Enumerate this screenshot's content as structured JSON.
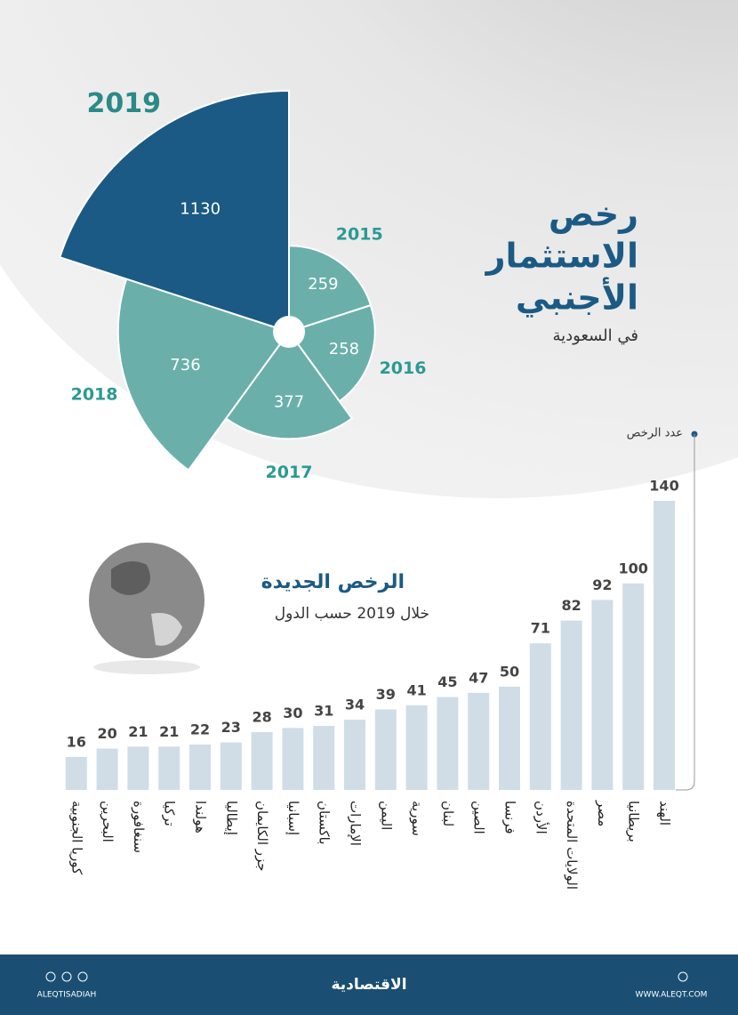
{
  "chart_data": [
    {
      "type": "polar",
      "title": [
        "رخص",
        "الاستثمار",
        "الأجنبي"
      ],
      "subtitle": "في السعودية",
      "categories": [
        "2015",
        "2016",
        "2017",
        "2018",
        "2019"
      ],
      "values": [
        259,
        258,
        377,
        736,
        1130
      ],
      "colors": [
        "#6aafaa",
        "#6aafaa",
        "#6aafaa",
        "#6aafaa",
        "#1b5a84"
      ]
    },
    {
      "type": "bar",
      "title": "الرخص الجديدة",
      "subtitle": "خلال 2019 حسب الدول",
      "y_label": "عدد الرخص",
      "categories": [
        "الهند",
        "بريطانيا",
        "مصر",
        "الولايات المتحدة",
        "الأردن",
        "فرنسا",
        "الصين",
        "لبنان",
        "سورية",
        "اليمن",
        "الإمارات",
        "باكستان",
        "إسبانيا",
        "جزر الكايمان",
        "إيطاليا",
        "هولندا",
        "تركيا",
        "سنغافورة",
        "البحرين",
        "كوريا الجنوبية"
      ],
      "values": [
        140,
        100,
        92,
        82,
        71,
        50,
        47,
        45,
        41,
        39,
        34,
        31,
        30,
        28,
        23,
        22,
        21,
        21,
        20,
        16
      ],
      "color": "#d0dde6"
    }
  ],
  "footer": {
    "handle": "ALEQTISADIAH",
    "logo": "الاقتصادية",
    "website": "WWW.ALEQT.COM"
  }
}
